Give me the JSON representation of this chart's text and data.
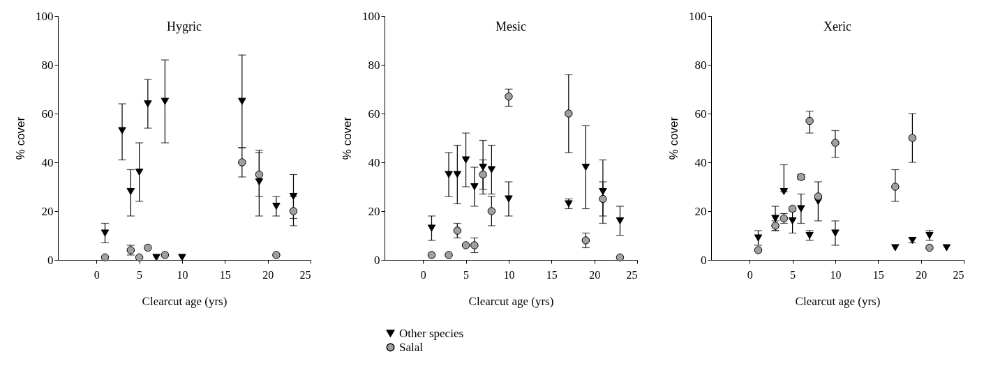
{
  "chart_data": [
    {
      "type": "scatter",
      "title": "Hygric",
      "xlabel": "Clearcut age (yrs)",
      "ylabel": "% cover",
      "xlim": [
        -4.5,
        25
      ],
      "xticks": [
        0,
        5,
        10,
        15,
        20,
        25
      ],
      "ylim": [
        0,
        100
      ],
      "yticks": [
        0,
        20,
        40,
        60,
        80,
        100
      ],
      "grid": false,
      "legend": false,
      "series": [
        {
          "color": "#000000",
          "marker": "triangle",
          "x": [
            1,
            3,
            4,
            5,
            6,
            7,
            8,
            10,
            17,
            19,
            21,
            23
          ],
          "values": [
            11,
            53,
            28,
            36,
            64,
            1,
            65,
            1,
            65,
            32,
            22,
            26
          ],
          "errors": [
            [
              7,
              15
            ],
            [
              41,
              64
            ],
            [
              18,
              37
            ],
            [
              24,
              48
            ],
            [
              54,
              74
            ],
            null,
            [
              48,
              82
            ],
            null,
            [
              46,
              84
            ],
            [
              18,
              45
            ],
            [
              18,
              26
            ],
            [
              17,
              35
            ]
          ]
        },
        {
          "color": "#a0a0a0",
          "marker": "circle",
          "x": [
            1,
            4,
            5,
            6,
            8,
            17,
            19,
            21,
            23
          ],
          "values": [
            1,
            4,
            1,
            5,
            2,
            40,
            35,
            2,
            20
          ],
          "errors": [
            null,
            [
              2,
              6
            ],
            null,
            null,
            null,
            [
              34,
              46
            ],
            [
              26,
              44
            ],
            null,
            [
              14,
              26
            ]
          ]
        }
      ]
    },
    {
      "type": "scatter",
      "title": "Mesic",
      "xlabel": "Clearcut age (yrs)",
      "ylabel": "% cover",
      "xlim": [
        -4.5,
        25
      ],
      "xticks": [
        0,
        5,
        10,
        15,
        20,
        25
      ],
      "ylim": [
        0,
        100
      ],
      "yticks": [
        0,
        20,
        40,
        60,
        80,
        100
      ],
      "grid": false,
      "legend": "bottom",
      "series": [
        {
          "name": "Other species",
          "color": "#000000",
          "marker": "triangle",
          "x": [
            1,
            3,
            4,
            5,
            6,
            7,
            8,
            10,
            17,
            19,
            21,
            23
          ],
          "values": [
            13,
            35,
            35,
            41,
            30,
            38,
            37,
            25,
            23,
            38,
            28,
            16
          ],
          "errors": [
            [
              8,
              18
            ],
            [
              26,
              44
            ],
            [
              23,
              47
            ],
            [
              30,
              52
            ],
            [
              22,
              38
            ],
            [
              27,
              49
            ],
            [
              27,
              47
            ],
            [
              18,
              32
            ],
            [
              21,
              25
            ],
            [
              21,
              55
            ],
            [
              15,
              41
            ],
            [
              10,
              22
            ]
          ]
        },
        {
          "name": "Salal",
          "color": "#a0a0a0",
          "marker": "circle",
          "x": [
            1,
            3,
            4,
            5,
            6,
            7,
            8,
            10,
            17,
            19,
            21,
            23
          ],
          "values": [
            2,
            2,
            12,
            6,
            6,
            35,
            20,
            67,
            60,
            8,
            25,
            1
          ],
          "errors": [
            null,
            null,
            [
              9,
              15
            ],
            null,
            [
              3,
              9
            ],
            [
              29,
              41
            ],
            [
              14,
              26
            ],
            [
              63,
              70
            ],
            [
              44,
              76
            ],
            [
              5,
              11
            ],
            [
              18,
              32
            ],
            null
          ]
        }
      ]
    },
    {
      "type": "scatter",
      "title": "Xeric",
      "xlabel": "Clearcut age (yrs)",
      "ylabel": "% cover",
      "xlim": [
        -4.5,
        25
      ],
      "xticks": [
        0,
        5,
        10,
        15,
        20,
        25
      ],
      "ylim": [
        0,
        100
      ],
      "yticks": [
        0,
        20,
        40,
        60,
        80,
        100
      ],
      "grid": false,
      "legend": false,
      "series": [
        {
          "color": "#000000",
          "marker": "triangle",
          "x": [
            1,
            3,
            4,
            5,
            6,
            7,
            8,
            10,
            17,
            19,
            21,
            23
          ],
          "values": [
            9,
            17,
            28,
            16,
            21,
            10,
            24,
            11,
            5,
            8,
            10,
            5
          ],
          "errors": [
            [
              6,
              12
            ],
            [
              12,
              22
            ],
            [
              28,
              39
            ],
            [
              11,
              20
            ],
            [
              15,
              27
            ],
            [
              8,
              12
            ],
            [
              16,
              32
            ],
            [
              6,
              16
            ],
            null,
            [
              7,
              9
            ],
            [
              8,
              12
            ],
            null
          ]
        },
        {
          "color": "#a0a0a0",
          "marker": "circle",
          "x": [
            1,
            3,
            4,
            5,
            6,
            7,
            8,
            10,
            17,
            19,
            21
          ],
          "values": [
            4,
            14,
            17,
            21,
            34,
            57,
            26,
            48,
            30,
            50,
            5
          ],
          "errors": [
            null,
            [
              12,
              16
            ],
            [
              15,
              19
            ],
            null,
            [
              33,
              35
            ],
            [
              52,
              61
            ],
            null,
            [
              42,
              53
            ],
            [
              24,
              37
            ],
            [
              40,
              60
            ],
            null
          ]
        }
      ]
    }
  ]
}
